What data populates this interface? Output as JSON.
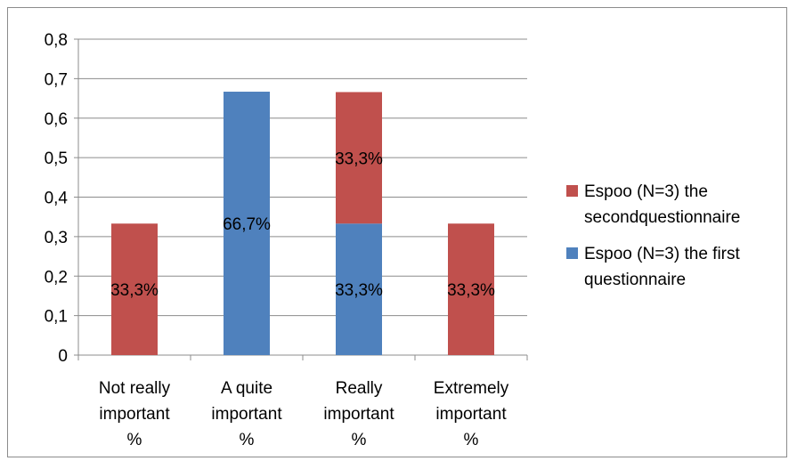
{
  "chart_data": {
    "type": "bar",
    "stacked": true,
    "categories": [
      [
        "Not really",
        "important",
        "%"
      ],
      [
        "A quite",
        "important",
        "%"
      ],
      [
        "Really",
        "important",
        "%"
      ],
      [
        "Extremely",
        "important",
        "%"
      ]
    ],
    "series": [
      {
        "name_lines": [
          "Espoo (N=3) the first",
          "questionnaire"
        ],
        "color": "#4f81bd",
        "values": [
          0,
          0.667,
          0.333,
          0
        ],
        "labels": [
          "",
          "66,7%",
          "33,3%",
          ""
        ]
      },
      {
        "name_lines": [
          "Espoo (N=3) the",
          "secondquestionnaire"
        ],
        "color": "#c0504d",
        "values": [
          0.333,
          0,
          0.333,
          0.333
        ],
        "labels": [
          "33,3%",
          "",
          "33,3%",
          "33,3%"
        ]
      }
    ],
    "y_ticks": [
      "0",
      "0,1",
      "0,2",
      "0,3",
      "0,4",
      "0,5",
      "0,6",
      "0,7",
      "0,8"
    ],
    "ylim": [
      0,
      0.8
    ],
    "grid": true,
    "legend_position": "right",
    "legend_order": [
      1,
      0
    ]
  }
}
